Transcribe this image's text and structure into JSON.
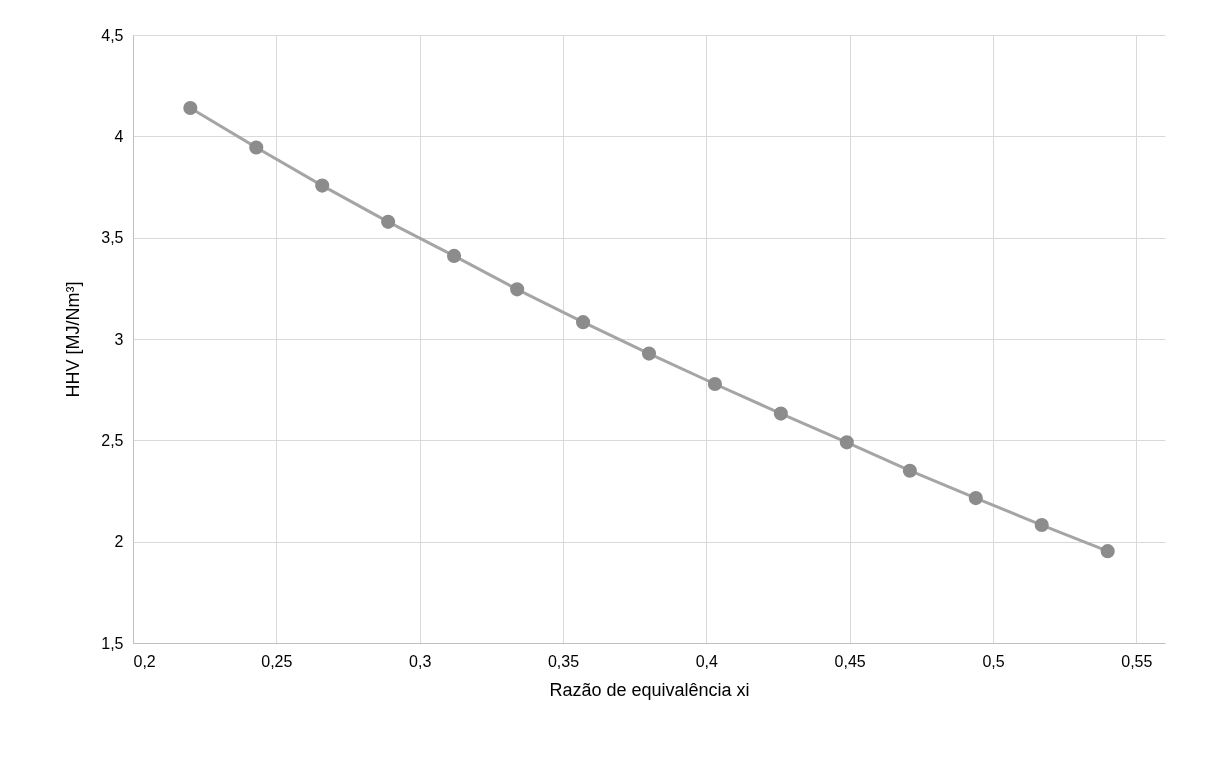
{
  "chart_data": {
    "type": "line",
    "xlabel": "Razão de equivalência xi",
    "ylabel": "HHV [MJ/Nm³]",
    "x": [
      0.22,
      0.243,
      0.266,
      0.289,
      0.312,
      0.334,
      0.357,
      0.38,
      0.403,
      0.426,
      0.449,
      0.471,
      0.494,
      0.517,
      0.54
    ],
    "series": [
      {
        "color": "#a5a5a5",
        "values": [
          4.14,
          3.945,
          3.757,
          3.578,
          3.41,
          3.245,
          3.083,
          2.928,
          2.778,
          2.632,
          2.49,
          2.35,
          2.215,
          2.082,
          1.953
        ]
      }
    ],
    "xlim": [
      0.2,
      0.56
    ],
    "xticks": [
      {
        "value": 0.2,
        "label": "0,2"
      },
      {
        "value": 0.25,
        "label": "0,25"
      },
      {
        "value": 0.3,
        "label": "0,3"
      },
      {
        "value": 0.35,
        "label": "0,35"
      },
      {
        "value": 0.4,
        "label": "0,4"
      },
      {
        "value": 0.45,
        "label": "0,45"
      },
      {
        "value": 0.5,
        "label": "0,5"
      },
      {
        "value": 0.55,
        "label": "0,55"
      }
    ],
    "ylim": [
      1.5,
      4.5
    ],
    "yticks": [
      {
        "value": 1.5,
        "label": "1,5"
      },
      2,
      {
        "value": 2.5,
        "label": "2,5"
      },
      3,
      {
        "value": 3.5,
        "label": "3,5"
      },
      4,
      {
        "value": 4.5,
        "label": "4,5"
      }
    ],
    "grid": true,
    "marker": "circle",
    "line_style": "solid"
  }
}
